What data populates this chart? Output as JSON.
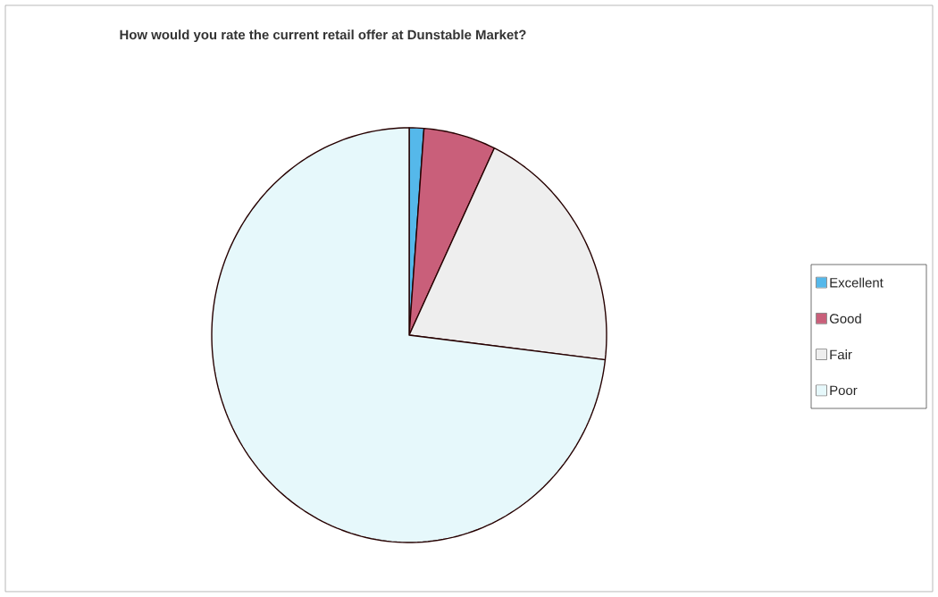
{
  "chart_data": {
    "type": "pie",
    "title": "How would you rate the current retail offer at Dunstable Market?",
    "categories": [
      "Excellent",
      "Good",
      "Fair",
      "Poor"
    ],
    "values": [
      1.2,
      5.9,
      19.8,
      73.1
    ],
    "colors": [
      "#55b8ea",
      "#c95f7a",
      "#eeeeee",
      "#e6f8fb"
    ],
    "legend": "right"
  }
}
